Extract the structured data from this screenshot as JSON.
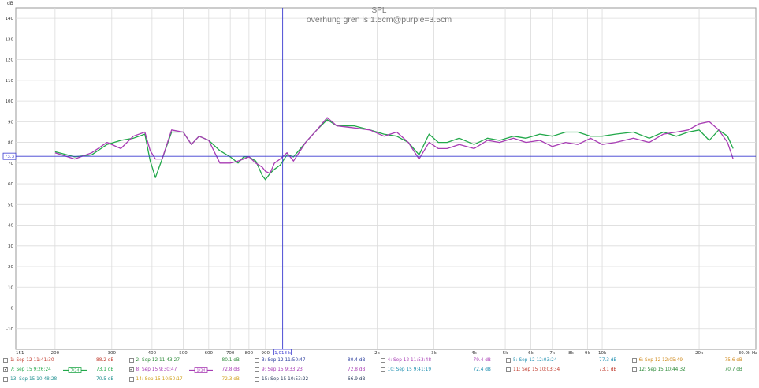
{
  "chart_data": {
    "type": "line",
    "title": "SPL",
    "subtitle": "overhung gren is 1.5cm@purple=3.5cm",
    "ylabel": "dB",
    "xlabel": "",
    "x_scale": "log",
    "xlim": [
      151,
      30000
    ],
    "ylim": [
      -20,
      145
    ],
    "grid": true,
    "y_ticks": [
      "140",
      "130",
      "120",
      "110",
      "100",
      "90",
      "80",
      "70",
      "60",
      "50",
      "40",
      "30",
      "20",
      "10",
      "0",
      "-10"
    ],
    "x_ticks": [
      {
        "v": 151,
        "label": "151"
      },
      {
        "v": 200,
        "label": "200"
      },
      {
        "v": 300,
        "label": "300"
      },
      {
        "v": 400,
        "label": "400"
      },
      {
        "v": 500,
        "label": "500"
      },
      {
        "v": 600,
        "label": "600"
      },
      {
        "v": 700,
        "label": "700"
      },
      {
        "v": 800,
        "label": "800"
      },
      {
        "v": 900,
        "label": "900"
      },
      {
        "v": 2000,
        "label": "2k"
      },
      {
        "v": 3000,
        "label": "3k"
      },
      {
        "v": 4000,
        "label": "4k"
      },
      {
        "v": 5000,
        "label": "5k"
      },
      {
        "v": 6000,
        "label": "6k"
      },
      {
        "v": 7000,
        "label": "7k"
      },
      {
        "v": 8000,
        "label": "8k"
      },
      {
        "v": 9000,
        "label": "9k"
      },
      {
        "v": 10000,
        "label": "10k"
      },
      {
        "v": 20000,
        "label": "20k"
      },
      {
        "v": 30000,
        "label": "30.0k Hz"
      }
    ],
    "cursor": {
      "x": 1018,
      "x_label": "1,018 k",
      "y": 73.3,
      "y_label": "73.3"
    },
    "series": [
      {
        "name": "7: Sep 15 9:26:24",
        "color": "#22a84a",
        "x": [
          200,
          230,
          260,
          290,
          320,
          350,
          380,
          395,
          410,
          430,
          460,
          500,
          530,
          560,
          600,
          650,
          700,
          740,
          770,
          800,
          840,
          880,
          900,
          930,
          960,
          1000,
          1050,
          1100,
          1200,
          1300,
          1400,
          1500,
          1700,
          1900,
          2100,
          2300,
          2500,
          2700,
          2900,
          3100,
          3300,
          3600,
          4000,
          4400,
          4800,
          5300,
          5800,
          6400,
          7000,
          7700,
          8400,
          9200,
          10000,
          11000,
          12500,
          14000,
          15500,
          17000,
          18500,
          20000,
          21500,
          23000,
          24500,
          25500
        ],
        "values": [
          75.5,
          73,
          74,
          79,
          81,
          82,
          84,
          71,
          63,
          72,
          85,
          85,
          79,
          83,
          81,
          76,
          73,
          70,
          73,
          73,
          71,
          64,
          62,
          65,
          67,
          69,
          74,
          73,
          80,
          86,
          91,
          88,
          88,
          86,
          84,
          83,
          80,
          74,
          84,
          80,
          80,
          82,
          79,
          82,
          81,
          83,
          82,
          84,
          83,
          85,
          85,
          83,
          83,
          84,
          85,
          82,
          85,
          83,
          85,
          86,
          81,
          86,
          83,
          77
        ]
      },
      {
        "name": "8: Sep 15 9:30:47",
        "color": "#a83cb4",
        "x": [
          200,
          230,
          260,
          290,
          320,
          350,
          380,
          395,
          410,
          430,
          460,
          500,
          530,
          560,
          600,
          650,
          700,
          740,
          770,
          800,
          840,
          880,
          900,
          930,
          960,
          1000,
          1050,
          1100,
          1200,
          1300,
          1400,
          1500,
          1700,
          1900,
          2100,
          2300,
          2500,
          2700,
          2900,
          3100,
          3300,
          3600,
          4000,
          4400,
          4800,
          5300,
          5800,
          6400,
          7000,
          7700,
          8400,
          9200,
          10000,
          11000,
          12500,
          14000,
          15500,
          17000,
          18500,
          20000,
          21500,
          23000,
          24500,
          25500
        ],
        "values": [
          75,
          72,
          75,
          80,
          77,
          83,
          85,
          76,
          72,
          72,
          86,
          85,
          79,
          83,
          81,
          70,
          70,
          71,
          72,
          73,
          70,
          68,
          66,
          65,
          70,
          72,
          75,
          71,
          80,
          86,
          92,
          88,
          87,
          86,
          83,
          85,
          80,
          72,
          80,
          77,
          77,
          79,
          77,
          81,
          80,
          82,
          80,
          81,
          78,
          80,
          79,
          82,
          79,
          80,
          82,
          80,
          84,
          85,
          86,
          89,
          90,
          86,
          80,
          72
        ]
      }
    ]
  },
  "legend": [
    [
      {
        "label": "1: Sep 12 11:41:30",
        "value": "88.2 dB",
        "color": "#c0392b",
        "checked": false
      },
      {
        "label": "2: Sep 12 11:43:27",
        "value": "80.1 dB",
        "color": "#2e8b3a",
        "checked": false
      },
      {
        "label": "3: Sep 12 11:50:47",
        "value": "80.4 dB",
        "color": "#2c3e9e",
        "checked": false
      },
      {
        "label": "4: Sep 12 11:53:48",
        "value": "79.4 dB",
        "color": "#a83cb4",
        "checked": false
      },
      {
        "label": "5: Sep 12 12:03:24",
        "value": "77.3 dB",
        "color": "#1e8fb0",
        "checked": false
      },
      {
        "label": "6: Sep 12 12:05:49",
        "value": "75.6 dB",
        "color": "#d08a1c",
        "checked": false
      }
    ],
    [
      {
        "label": "7: Sep 15 9:26:24",
        "value": "73.1 dB",
        "color": "#22a84a",
        "checked": true,
        "swatch": "7/24"
      },
      {
        "label": "8: Sep 15 9:30:47",
        "value": "72.8 dB",
        "color": "#a83cb4",
        "checked": true,
        "swatch": "1/24"
      },
      {
        "label": "9: Sep 15 9:33:23",
        "value": "72.8 dB",
        "color": "#a83cb4",
        "checked": false
      },
      {
        "label": "10: Sep 15 9:41:19",
        "value": "72.4 dB",
        "color": "#1e8fb0",
        "checked": false
      },
      {
        "label": "11: Sep 15 10:03:34",
        "value": "73.1 dB",
        "color": "#c0392b",
        "checked": false
      },
      {
        "label": "12: Sep 15 10:44:32",
        "value": "70.7 dB",
        "color": "#2e8b3a",
        "checked": false
      }
    ],
    [
      {
        "label": "13: Sep 15 10:48:28",
        "value": "70.5 dB",
        "color": "#1e8f8f",
        "checked": false
      },
      {
        "label": "14: Sep 15 10:50:17",
        "value": "72.3 dB",
        "color": "#d0a01c",
        "checked": false
      },
      {
        "label": "15: Sep 15 10:53:22",
        "value": "66.9 dB",
        "color": "#2c3e5e",
        "checked": false
      }
    ]
  ]
}
